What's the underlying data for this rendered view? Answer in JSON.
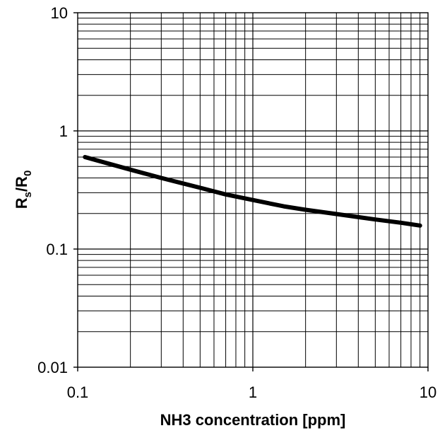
{
  "chart_data": {
    "type": "line",
    "title": "",
    "xlabel": "NH3 concentration [ppm]",
    "ylabel": {
      "main1": "R",
      "sub1": "s",
      "slash": "/",
      "main2": "R",
      "sub2": "0"
    },
    "xscale": "log",
    "yscale": "log",
    "xlim": [
      0.1,
      10
    ],
    "ylim": [
      0.01,
      10
    ],
    "grid": true,
    "legend": "none",
    "x_ticks": [
      {
        "value": 0.1,
        "label": "0.1"
      },
      {
        "value": 1,
        "label": "1"
      },
      {
        "value": 10,
        "label": "10"
      }
    ],
    "y_ticks": [
      {
        "value": 0.01,
        "label": "0.01"
      },
      {
        "value": 0.1,
        "label": "0.1"
      },
      {
        "value": 1,
        "label": "1"
      },
      {
        "value": 10,
        "label": "10"
      }
    ],
    "series": [
      {
        "color": "#000000",
        "x": [
          0.11,
          0.2,
          0.3,
          0.5,
          0.7,
          1,
          1.5,
          2,
          3,
          5,
          7,
          9
        ],
        "y": [
          0.6,
          0.47,
          0.4,
          0.33,
          0.29,
          0.26,
          0.23,
          0.215,
          0.198,
          0.178,
          0.167,
          0.158
        ]
      }
    ]
  }
}
